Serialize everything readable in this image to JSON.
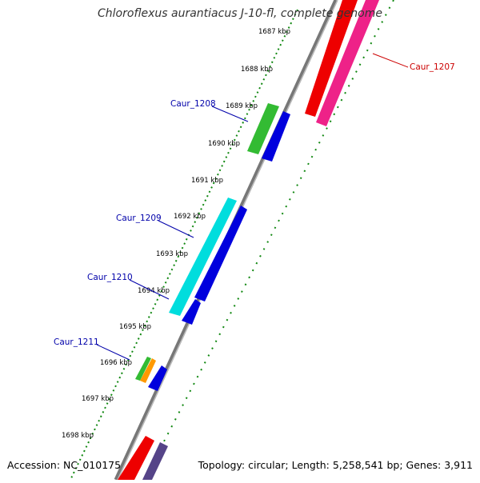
{
  "title": "Chloroflexus aurantiacus J-10-fl, complete genome",
  "footer": {
    "accession": "Accession: NC_010175",
    "info": "Topology: circular; Length: 5,258,541 bp; Genes: 3,911"
  },
  "ticks": [
    "1687 kbp",
    "1688 kbp",
    "1689 kbp",
    "1690 kbp",
    "1691 kbp",
    "1692 kbp",
    "1693 kbp",
    "1694 kbp",
    "1695 kbp",
    "1696 kbp",
    "1697 kbp",
    "1698 kbp"
  ],
  "gene_labels": [
    {
      "text": "Caur_1207",
      "color": "#cc0000"
    },
    {
      "text": "Caur_1208",
      "color": "#0000aa"
    },
    {
      "text": "Caur_1209",
      "color": "#0000aa"
    },
    {
      "text": "Caur_1210",
      "color": "#0000aa"
    },
    {
      "text": "Caur_1211",
      "color": "#0000aa"
    }
  ],
  "colors": {
    "backbone": "#888888",
    "tick_ring": "#118811",
    "red": "#ee0000",
    "pink": "#ee2288",
    "green": "#33bb33",
    "blue": "#0000dd",
    "cyan": "#00dddd",
    "orange": "#ff9900",
    "purple": "#554488"
  }
}
